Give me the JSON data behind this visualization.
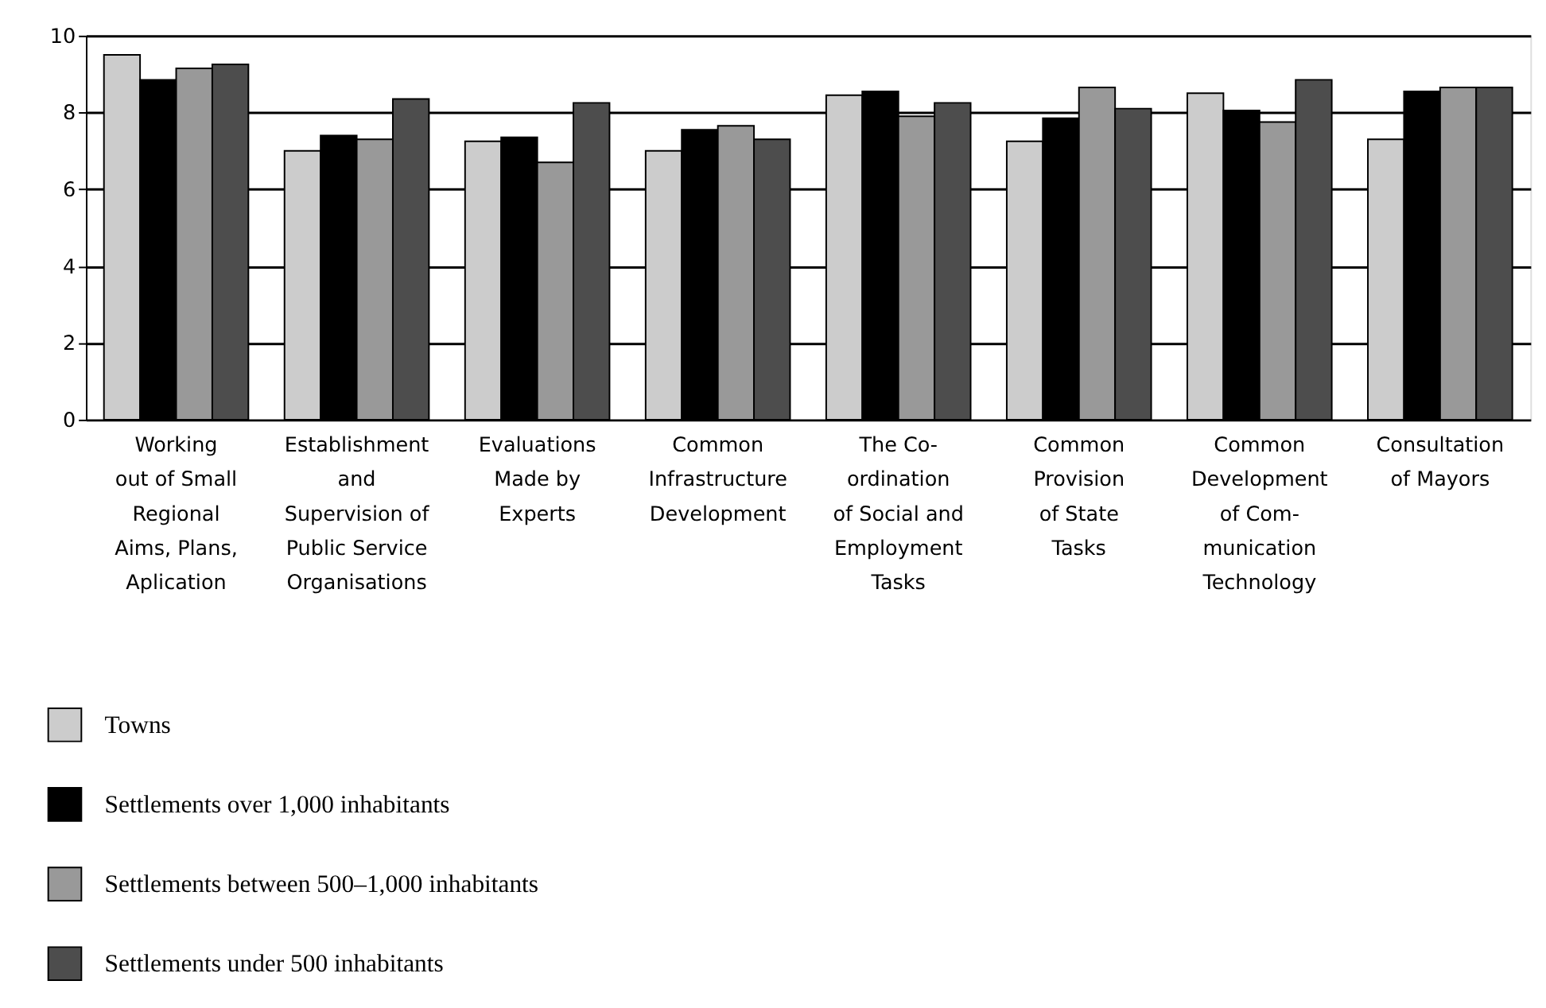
{
  "chart_data": {
    "type": "bar",
    "categories": [
      "Working\nout of Small\nRegional\nAims, Plans,\nAplication",
      "Establishment\nand\nSupervision of\nPublic Service\nOrganisations",
      "Evaluations\nMade by\nExperts",
      "Common\nInfrastructure\nDevelopment",
      "The Co-\nordination\nof Social and\nEmployment\nTasks",
      "Common\nProvision\nof State\nTasks",
      "Common\nDevelopment\nof Com-\nmunication\nTechnology",
      "Consultation\nof Mayors"
    ],
    "series": [
      {
        "name": "Towns",
        "color": "#cccccc",
        "values": [
          9.5,
          7.0,
          7.25,
          7.0,
          8.45,
          7.25,
          8.5,
          7.3
        ]
      },
      {
        "name": "Settlements over 1,000 inhabitants",
        "color": "#000000",
        "values": [
          8.85,
          7.4,
          7.35,
          7.55,
          8.55,
          7.85,
          8.05,
          8.55
        ]
      },
      {
        "name": "Settlements between 500–1,000 inhabitants",
        "color": "#999999",
        "values": [
          9.15,
          7.3,
          6.7,
          7.65,
          7.9,
          8.65,
          7.75,
          8.65
        ]
      },
      {
        "name": "Settlements under 500 inhabitants",
        "color": "#4d4d4d",
        "values": [
          9.25,
          8.35,
          8.25,
          7.3,
          8.25,
          8.1,
          8.85,
          8.65
        ]
      }
    ],
    "ylim": [
      0,
      10
    ],
    "yticks": [
      0,
      2,
      4,
      6,
      8,
      10
    ],
    "grid": "y",
    "legend": "bottom left"
  }
}
